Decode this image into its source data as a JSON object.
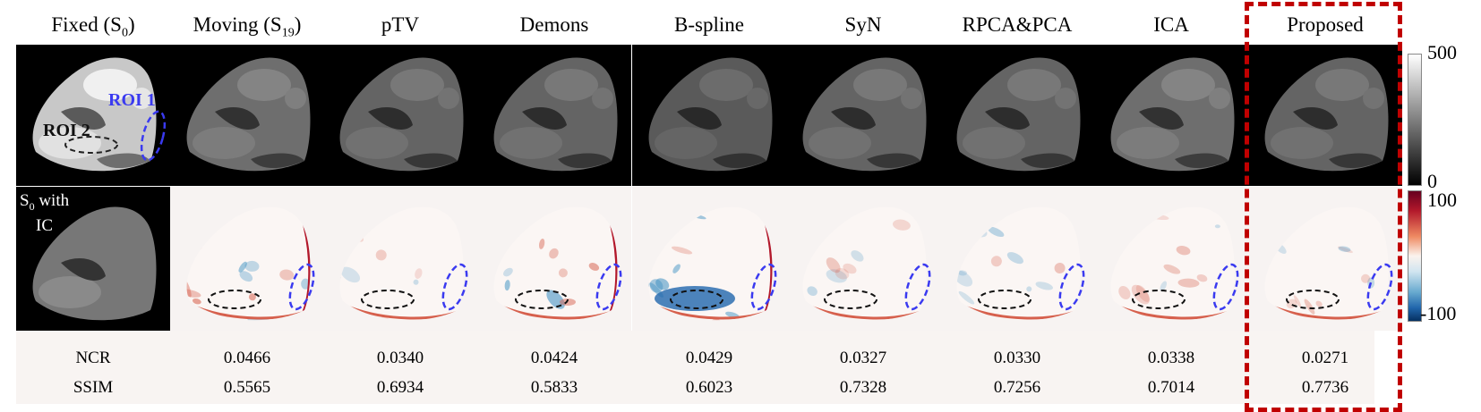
{
  "columns": [
    {
      "label": "Fixed (S",
      "sub": "0",
      "tail": ")"
    },
    {
      "label": "Moving (S",
      "sub": "19",
      "tail": ")"
    },
    {
      "label": "pTV"
    },
    {
      "label": "Demons"
    },
    {
      "label": "B-spline"
    },
    {
      "label": "SyN"
    },
    {
      "label": "RPCA&PCA"
    },
    {
      "label": "ICA"
    },
    {
      "label": "Proposed"
    }
  ],
  "annotations": {
    "roi1": "ROI 1",
    "roi2": "ROI 2",
    "s0_with_ic_line1_main": "S",
    "s0_with_ic_line1_sub": "0",
    "s0_with_ic_line1_tail": " with",
    "s0_with_ic_line2": "IC"
  },
  "metrics": {
    "ncr": {
      "label": "NCR",
      "values": [
        "0.0466",
        "0.0340",
        "0.0424",
        "0.0429",
        "0.0327",
        "0.0330",
        "0.0338",
        "0.0271"
      ]
    },
    "ssim": {
      "label": "SSIM",
      "values": [
        "0.5565",
        "0.6934",
        "0.5833",
        "0.6023",
        "0.7328",
        "0.7256",
        "0.7014",
        "0.7736"
      ]
    }
  },
  "colorbars": {
    "intensity": {
      "max": "500",
      "min": "0",
      "colormap": "gray"
    },
    "difference": {
      "max": "100",
      "min": "-100",
      "colormap": "red-white-blue"
    }
  },
  "colors": {
    "highlight_box": "#c00000",
    "roi1": "#3333ee",
    "roi2": "#111111"
  }
}
